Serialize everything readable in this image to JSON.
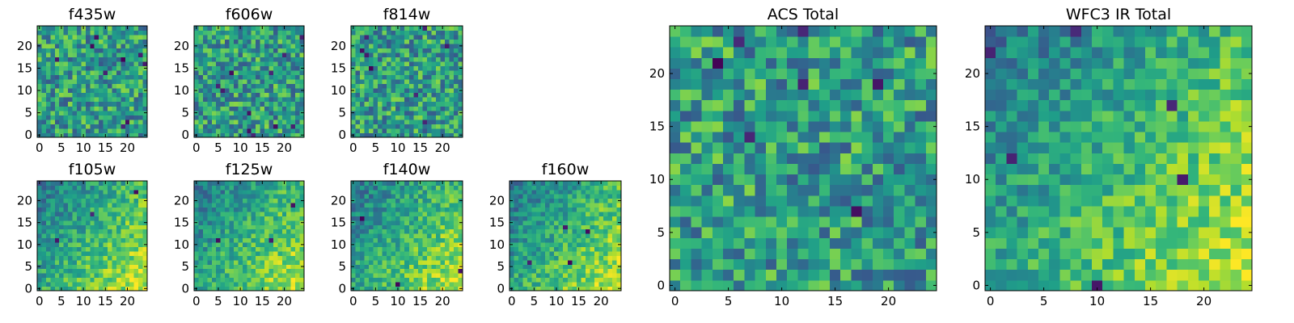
{
  "chart_data": [
    {
      "type": "heatmap",
      "id": "f435w",
      "title": "f435w",
      "grid_size": 25,
      "xticks": [
        "0",
        "5",
        "10",
        "15",
        "20"
      ],
      "yticks": [
        "0",
        "5",
        "10",
        "15",
        "20"
      ],
      "colormap": "viridis",
      "trend": "uniform",
      "dark_pixels": 9,
      "seed": 11
    },
    {
      "type": "heatmap",
      "id": "f606w",
      "title": "f606w",
      "grid_size": 25,
      "xticks": [
        "0",
        "5",
        "10",
        "15",
        "20"
      ],
      "yticks": [
        "0",
        "5",
        "10",
        "15",
        "20"
      ],
      "colormap": "viridis",
      "trend": "uniform",
      "dark_pixels": 11,
      "seed": 23
    },
    {
      "type": "heatmap",
      "id": "f814w",
      "title": "f814w",
      "grid_size": 25,
      "xticks": [
        "0",
        "5",
        "10",
        "15",
        "20"
      ],
      "yticks": [
        "0",
        "5",
        "10",
        "15",
        "20"
      ],
      "colormap": "viridis",
      "trend": "uniform",
      "dark_pixels": 8,
      "seed": 37
    },
    {
      "type": "heatmap",
      "id": "f105w",
      "title": "f105w",
      "grid_size": 25,
      "xticks": [
        "0",
        "5",
        "10",
        "15",
        "20"
      ],
      "yticks": [
        "0",
        "5",
        "10",
        "15",
        "20"
      ],
      "colormap": "viridis",
      "trend": "gradient",
      "dark_pixels": 3,
      "seed": 41
    },
    {
      "type": "heatmap",
      "id": "f125w",
      "title": "f125w",
      "grid_size": 25,
      "xticks": [
        "0",
        "5",
        "10",
        "15",
        "20"
      ],
      "yticks": [
        "0",
        "5",
        "10",
        "15",
        "20"
      ],
      "colormap": "viridis",
      "trend": "gradient",
      "dark_pixels": 3,
      "seed": 53
    },
    {
      "type": "heatmap",
      "id": "f140w",
      "title": "f140w",
      "grid_size": 25,
      "xticks": [
        "0",
        "5",
        "10",
        "15",
        "20"
      ],
      "yticks": [
        "0",
        "5",
        "10",
        "15",
        "20"
      ],
      "colormap": "viridis",
      "trend": "gradient",
      "dark_pixels": 3,
      "seed": 67
    },
    {
      "type": "heatmap",
      "id": "f160w",
      "title": "f160w",
      "grid_size": 25,
      "xticks": [
        "0",
        "5",
        "10",
        "15",
        "20"
      ],
      "yticks": [
        "0",
        "5",
        "10",
        "15",
        "20"
      ],
      "colormap": "viridis",
      "trend": "gradient",
      "dark_pixels": 4,
      "seed": 71
    },
    {
      "type": "heatmap",
      "id": "acs-total",
      "title": "ACS Total",
      "grid_size": 25,
      "xticks": [
        "0",
        "5",
        "10",
        "15",
        "20"
      ],
      "yticks": [
        "0",
        "5",
        "10",
        "15",
        "20"
      ],
      "colormap": "viridis",
      "trend": "uniform",
      "dark_pixels": 7,
      "seed": 83
    },
    {
      "type": "heatmap",
      "id": "wfc3-ir-total",
      "title": "WFC3 IR Total",
      "grid_size": 25,
      "xticks": [
        "0",
        "5",
        "10",
        "15",
        "20"
      ],
      "yticks": [
        "0",
        "5",
        "10",
        "15",
        "20"
      ],
      "colormap": "viridis",
      "trend": "gradient",
      "dark_pixels": 6,
      "seed": 97
    }
  ]
}
